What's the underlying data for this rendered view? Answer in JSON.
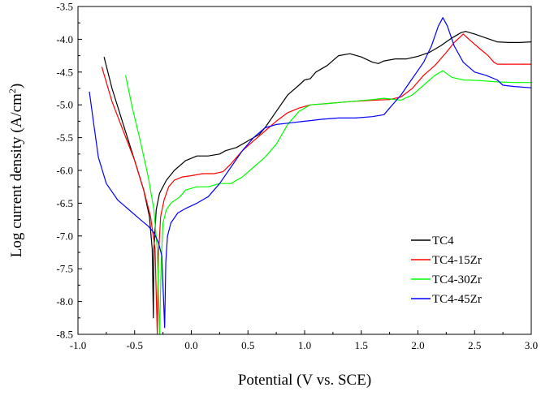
{
  "chart_data": {
    "type": "line",
    "xlabel": "Potential (V vs. SCE)",
    "ylabel_main": "Log current density (A/cm",
    "ylabel_sup": "2",
    "ylabel_close": ")",
    "xlim": [
      -1.0,
      3.0
    ],
    "ylim": [
      -8.5,
      -3.5
    ],
    "xticks": [
      "-1.0",
      "-0.5",
      "0.0",
      "0.5",
      "1.0",
      "1.5",
      "2.0",
      "2.5",
      "3.0"
    ],
    "yticks": [
      "-3.5",
      "-4.0",
      "-4.5",
      "-5.0",
      "-5.5",
      "-6.0",
      "-6.5",
      "-7.0",
      "-7.5",
      "-8.0",
      "-8.5"
    ],
    "grid": false,
    "legend_position": "bottom-right",
    "series": [
      {
        "name": "TC4",
        "color": "#000000",
        "points": [
          [
            -0.77,
            -4.27
          ],
          [
            -0.7,
            -4.75
          ],
          [
            -0.6,
            -5.3
          ],
          [
            -0.5,
            -5.85
          ],
          [
            -0.42,
            -6.3
          ],
          [
            -0.37,
            -6.7
          ],
          [
            -0.345,
            -7.2
          ],
          [
            -0.335,
            -8.25
          ],
          [
            -0.33,
            -7.2
          ],
          [
            -0.31,
            -6.6
          ],
          [
            -0.28,
            -6.35
          ],
          [
            -0.22,
            -6.15
          ],
          [
            -0.15,
            -6.0
          ],
          [
            -0.05,
            -5.85
          ],
          [
            0.05,
            -5.78
          ],
          [
            0.15,
            -5.78
          ],
          [
            0.25,
            -5.75
          ],
          [
            0.3,
            -5.7
          ],
          [
            0.4,
            -5.65
          ],
          [
            0.5,
            -5.55
          ],
          [
            0.6,
            -5.45
          ],
          [
            0.65,
            -5.35
          ],
          [
            0.75,
            -5.1
          ],
          [
            0.85,
            -4.85
          ],
          [
            0.95,
            -4.7
          ],
          [
            1.0,
            -4.62
          ],
          [
            1.05,
            -4.6
          ],
          [
            1.1,
            -4.5
          ],
          [
            1.2,
            -4.4
          ],
          [
            1.3,
            -4.25
          ],
          [
            1.4,
            -4.22
          ],
          [
            1.5,
            -4.27
          ],
          [
            1.6,
            -4.35
          ],
          [
            1.65,
            -4.37
          ],
          [
            1.7,
            -4.33
          ],
          [
            1.8,
            -4.3
          ],
          [
            1.9,
            -4.3
          ],
          [
            2.0,
            -4.26
          ],
          [
            2.1,
            -4.2
          ],
          [
            2.2,
            -4.1
          ],
          [
            2.3,
            -3.98
          ],
          [
            2.38,
            -3.9
          ],
          [
            2.42,
            -3.88
          ],
          [
            2.5,
            -3.92
          ],
          [
            2.6,
            -3.98
          ],
          [
            2.7,
            -4.04
          ],
          [
            2.8,
            -4.05
          ],
          [
            2.9,
            -4.05
          ],
          [
            3.0,
            -4.04
          ]
        ]
      },
      {
        "name": "TC4-15Zr",
        "color": "#ff0000",
        "points": [
          [
            -0.79,
            -4.42
          ],
          [
            -0.7,
            -4.95
          ],
          [
            -0.6,
            -5.4
          ],
          [
            -0.5,
            -5.85
          ],
          [
            -0.42,
            -6.3
          ],
          [
            -0.36,
            -6.7
          ],
          [
            -0.32,
            -7.2
          ],
          [
            -0.3,
            -8.5
          ],
          [
            -0.29,
            -7.3
          ],
          [
            -0.27,
            -6.7
          ],
          [
            -0.24,
            -6.45
          ],
          [
            -0.2,
            -6.25
          ],
          [
            -0.15,
            -6.15
          ],
          [
            -0.08,
            -6.1
          ],
          [
            0.0,
            -6.08
          ],
          [
            0.1,
            -6.05
          ],
          [
            0.2,
            -6.05
          ],
          [
            0.28,
            -6.02
          ],
          [
            0.35,
            -5.9
          ],
          [
            0.45,
            -5.7
          ],
          [
            0.55,
            -5.55
          ],
          [
            0.65,
            -5.4
          ],
          [
            0.75,
            -5.25
          ],
          [
            0.85,
            -5.12
          ],
          [
            0.95,
            -5.05
          ],
          [
            1.05,
            -5.0
          ],
          [
            1.2,
            -4.98
          ],
          [
            1.4,
            -4.95
          ],
          [
            1.6,
            -4.93
          ],
          [
            1.75,
            -4.92
          ],
          [
            1.85,
            -4.88
          ],
          [
            1.95,
            -4.75
          ],
          [
            2.05,
            -4.55
          ],
          [
            2.15,
            -4.4
          ],
          [
            2.25,
            -4.2
          ],
          [
            2.32,
            -4.05
          ],
          [
            2.4,
            -3.92
          ],
          [
            2.45,
            -4.0
          ],
          [
            2.55,
            -4.15
          ],
          [
            2.62,
            -4.25
          ],
          [
            2.67,
            -4.35
          ],
          [
            2.7,
            -4.38
          ],
          [
            2.8,
            -4.38
          ],
          [
            3.0,
            -4.38
          ]
        ]
      },
      {
        "name": "TC4-30Zr",
        "color": "#00ff00",
        "points": [
          [
            -0.58,
            -4.55
          ],
          [
            -0.52,
            -5.05
          ],
          [
            -0.45,
            -5.55
          ],
          [
            -0.38,
            -6.1
          ],
          [
            -0.33,
            -6.6
          ],
          [
            -0.3,
            -7.2
          ],
          [
            -0.28,
            -8.5
          ],
          [
            -0.265,
            -7.4
          ],
          [
            -0.25,
            -6.8
          ],
          [
            -0.22,
            -6.6
          ],
          [
            -0.18,
            -6.5
          ],
          [
            -0.1,
            -6.4
          ],
          [
            -0.05,
            -6.3
          ],
          [
            0.05,
            -6.25
          ],
          [
            0.15,
            -6.25
          ],
          [
            0.25,
            -6.2
          ],
          [
            0.35,
            -6.2
          ],
          [
            0.45,
            -6.1
          ],
          [
            0.55,
            -5.95
          ],
          [
            0.65,
            -5.8
          ],
          [
            0.75,
            -5.6
          ],
          [
            0.85,
            -5.3
          ],
          [
            0.95,
            -5.1
          ],
          [
            1.05,
            -5.0
          ],
          [
            1.2,
            -4.98
          ],
          [
            1.4,
            -4.95
          ],
          [
            1.6,
            -4.92
          ],
          [
            1.7,
            -4.9
          ],
          [
            1.85,
            -4.93
          ],
          [
            1.95,
            -4.85
          ],
          [
            2.05,
            -4.7
          ],
          [
            2.15,
            -4.55
          ],
          [
            2.22,
            -4.48
          ],
          [
            2.3,
            -4.58
          ],
          [
            2.4,
            -4.62
          ],
          [
            2.55,
            -4.63
          ],
          [
            2.7,
            -4.65
          ],
          [
            2.85,
            -4.66
          ],
          [
            3.0,
            -4.66
          ]
        ]
      },
      {
        "name": "TC4-45Zr",
        "color": "#0000ff",
        "points": [
          [
            -0.9,
            -4.8
          ],
          [
            -0.86,
            -5.3
          ],
          [
            -0.82,
            -5.8
          ],
          [
            -0.75,
            -6.2
          ],
          [
            -0.65,
            -6.45
          ],
          [
            -0.55,
            -6.6
          ],
          [
            -0.45,
            -6.75
          ],
          [
            -0.38,
            -6.85
          ],
          [
            -0.33,
            -6.95
          ],
          [
            -0.29,
            -7.1
          ],
          [
            -0.26,
            -7.3
          ],
          [
            -0.235,
            -8.4
          ],
          [
            -0.225,
            -7.4
          ],
          [
            -0.21,
            -7.0
          ],
          [
            -0.18,
            -6.8
          ],
          [
            -0.12,
            -6.65
          ],
          [
            -0.05,
            -6.58
          ],
          [
            0.05,
            -6.5
          ],
          [
            0.15,
            -6.4
          ],
          [
            0.25,
            -6.2
          ],
          [
            0.35,
            -5.95
          ],
          [
            0.45,
            -5.7
          ],
          [
            0.55,
            -5.5
          ],
          [
            0.65,
            -5.35
          ],
          [
            0.75,
            -5.3
          ],
          [
            0.85,
            -5.28
          ],
          [
            1.0,
            -5.25
          ],
          [
            1.15,
            -5.22
          ],
          [
            1.3,
            -5.2
          ],
          [
            1.45,
            -5.2
          ],
          [
            1.6,
            -5.18
          ],
          [
            1.7,
            -5.15
          ],
          [
            1.75,
            -5.05
          ],
          [
            1.85,
            -4.85
          ],
          [
            1.95,
            -4.6
          ],
          [
            2.05,
            -4.35
          ],
          [
            2.12,
            -4.1
          ],
          [
            2.18,
            -3.8
          ],
          [
            2.22,
            -3.67
          ],
          [
            2.26,
            -3.8
          ],
          [
            2.32,
            -4.1
          ],
          [
            2.4,
            -4.35
          ],
          [
            2.5,
            -4.5
          ],
          [
            2.6,
            -4.55
          ],
          [
            2.7,
            -4.62
          ],
          [
            2.75,
            -4.7
          ],
          [
            2.85,
            -4.72
          ],
          [
            3.0,
            -4.74
          ]
        ]
      }
    ]
  }
}
